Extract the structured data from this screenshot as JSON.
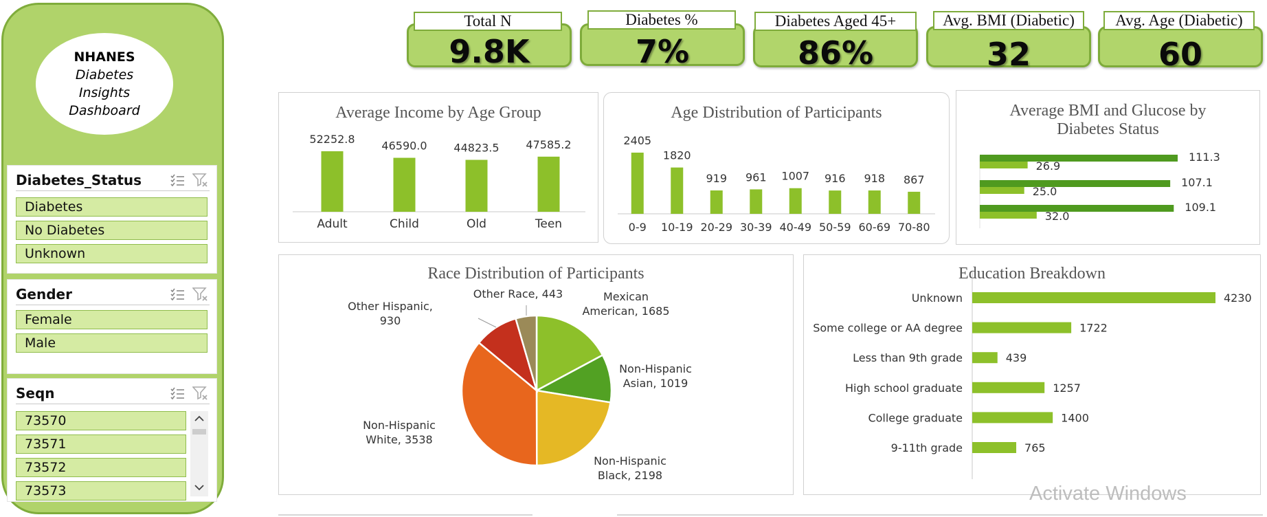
{
  "sidebar": {
    "logo": {
      "line1": "NHANES",
      "line2": "Diabetes",
      "line3": "Insights",
      "line4": "Dashboard"
    },
    "slicers": [
      {
        "title": "Diabetes_Status",
        "items": [
          "Diabetes",
          "No Diabetes",
          "Unknown"
        ]
      },
      {
        "title": "Gender",
        "items": [
          "Female",
          "Male"
        ]
      },
      {
        "title": "Seqn",
        "items": [
          "73570",
          "73571",
          "73572",
          "73573"
        ]
      }
    ],
    "icons": [
      "multi-select-icon",
      "clear-filter-icon",
      "scroll-up-icon",
      "scroll-down-icon"
    ]
  },
  "kpis": [
    {
      "label": "Total N",
      "value": "9.8K"
    },
    {
      "label": "Diabetes %",
      "value": "7%"
    },
    {
      "label": "Diabetes Aged 45+",
      "value": "86%"
    },
    {
      "label": "Avg. BMI (Diabetic)",
      "value": "32"
    },
    {
      "label": "Avg. Age (Diabetic)",
      "value": "60"
    }
  ],
  "colors": {
    "accent": "#b0d36a",
    "border": "#7fac3b",
    "bar": "#8dc02a",
    "bar_dark": "#4f9a1f"
  },
  "charts": {
    "income": {
      "chart_data": {
        "type": "bar",
        "title": "Average Income by Age Group",
        "categories": [
          "Adult",
          "Child",
          "Old",
          "Teen"
        ],
        "values": [
          52252.8,
          46590.0,
          44823.5,
          47585.2
        ],
        "labels": [
          "52252.8",
          "46590.0",
          "44823.5",
          "47585.2"
        ]
      }
    },
    "age": {
      "chart_data": {
        "type": "bar",
        "title": "Age Distribution of Participants",
        "categories": [
          "0-9",
          "10-19",
          "20-29",
          "30-39",
          "40-49",
          "50-59",
          "60-69",
          "70-80"
        ],
        "values": [
          2405,
          1820,
          919,
          961,
          1007,
          916,
          918,
          867
        ]
      }
    },
    "bmi": {
      "chart_data": {
        "type": "bar",
        "title": "Average BMI and Glucose by Diabetes Status",
        "title_lines": [
          "Average BMI and Glucose by",
          "Diabetes Status"
        ],
        "series": [
          {
            "values": [
              111.3,
              107.1,
              109.1
            ],
            "labels": [
              "111.3",
              "107.1",
              "109.1"
            ]
          },
          {
            "values": [
              26.9,
              25.0,
              32.0
            ],
            "labels": [
              "26.9",
              "25.0",
              "32.0"
            ]
          }
        ]
      }
    },
    "race": {
      "chart_data": {
        "type": "pie",
        "title": "Race Distribution of Participants",
        "slices": [
          {
            "lines": [
              "Mexican",
              "American, 1685"
            ],
            "value": 1685,
            "color": "#8dc02a"
          },
          {
            "lines": [
              "Non-Hispanic",
              "Asian, 1019"
            ],
            "value": 1019,
            "color": "#52a123"
          },
          {
            "lines": [
              "Non-Hispanic",
              "Black, 2198"
            ],
            "value": 2198,
            "color": "#e5b825"
          },
          {
            "lines": [
              "Non-Hispanic",
              "White, 3538"
            ],
            "value": 3538,
            "color": "#e8661d"
          },
          {
            "lines": [
              "Other Hispanic,",
              "930"
            ],
            "value": 930,
            "color": "#c4301d"
          },
          {
            "lines": [
              "Other Race, 443"
            ],
            "value": 443,
            "color": "#9b8a58"
          }
        ]
      }
    },
    "education": {
      "chart_data": {
        "type": "bar",
        "title": "Education Breakdown",
        "categories": [
          "Unknown",
          "Some college or AA degree",
          "Less than 9th grade",
          "High school graduate",
          "College graduate",
          "9-11th grade"
        ],
        "values": [
          4230,
          1722,
          439,
          1257,
          1400,
          765
        ]
      }
    }
  },
  "watermark": "Activate Windows"
}
